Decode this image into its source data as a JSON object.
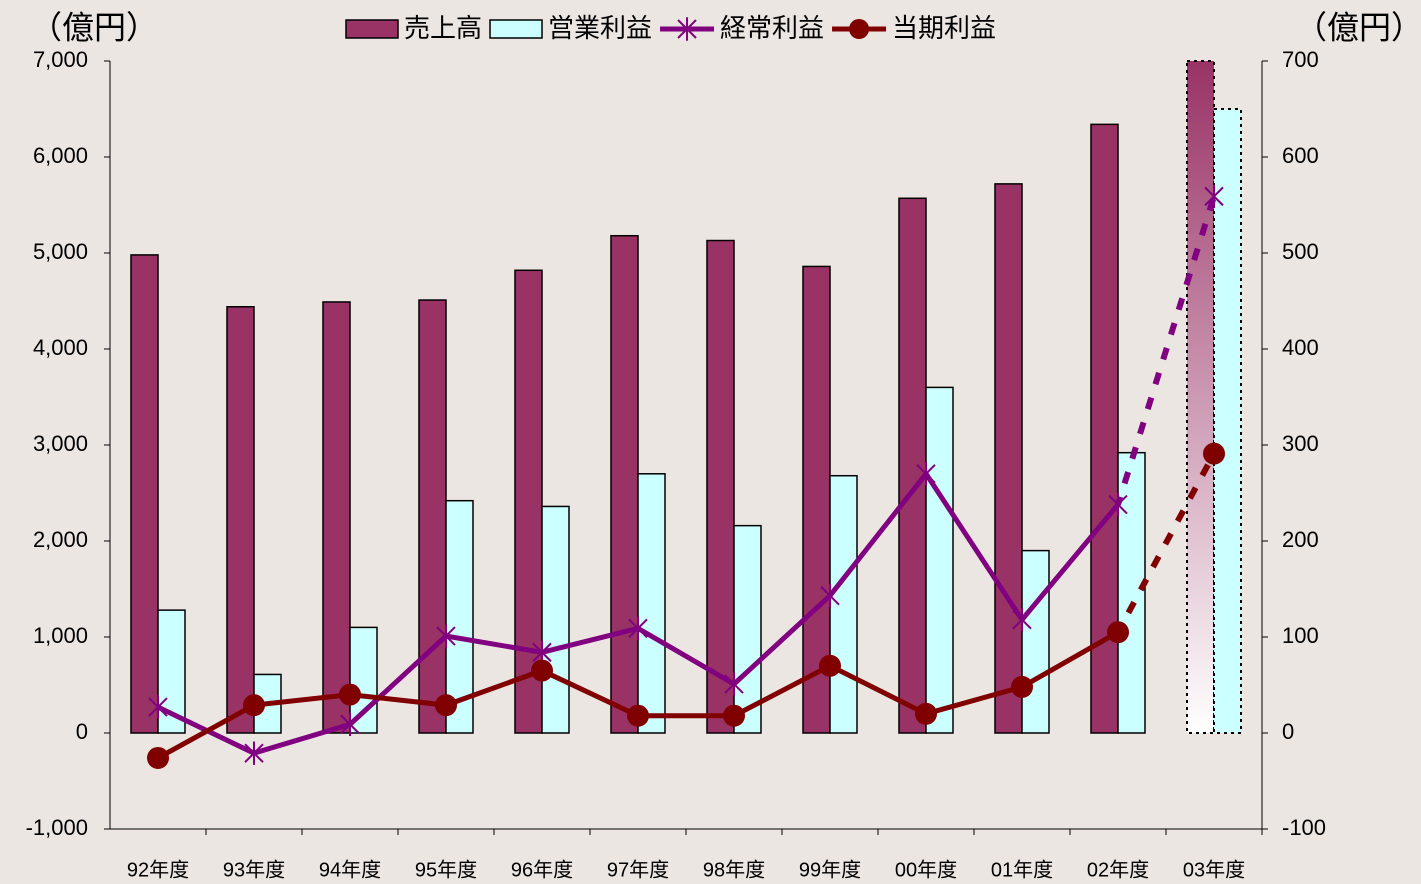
{
  "chart_data": {
    "type": "bar_line",
    "categories": [
      "92年度",
      "93年度",
      "94年度",
      "95年度",
      "96年度",
      "97年度",
      "98年度",
      "99年度",
      "00年度",
      "01年度",
      "02年度",
      "03年度"
    ],
    "y_label": "（億円）",
    "y2_label": "（億円）",
    "ylim": [
      -1000,
      7000
    ],
    "yticks": [
      {
        "value": -1000,
        "label": "-1,000"
      },
      0,
      {
        "value": 1000,
        "label": "1,000"
      },
      {
        "value": 2000,
        "label": "2,000"
      },
      {
        "value": 3000,
        "label": "3,000"
      },
      {
        "value": 4000,
        "label": "4,000"
      },
      {
        "value": 5000,
        "label": "5,000"
      },
      {
        "value": 6000,
        "label": "6,000"
      },
      {
        "value": 7000,
        "label": "7,000"
      }
    ],
    "y2lim": [
      -100,
      700
    ],
    "y2ticks": [
      -100,
      0,
      100,
      200,
      300,
      400,
      500,
      600,
      700
    ],
    "negative_tick_color": "#ff0000",
    "legend": "top",
    "forecast_last": true,
    "series": [
      {
        "name": "売上高",
        "kind": "bar",
        "color": "#993366",
        "values": [
          4980,
          4440,
          4490,
          4510,
          4820,
          5180,
          5130,
          4860,
          5570,
          5720,
          6340,
          7000
        ]
      },
      {
        "name": "営業利益",
        "kind": "bar",
        "axis": "y2",
        "color": "#ccffff",
        "values": [
          128,
          61,
          110,
          242,
          236,
          270,
          216,
          268,
          360,
          190,
          292,
          650
        ]
      },
      {
        "name": "経常利益",
        "kind": "line",
        "axis": "y2",
        "marker": "star",
        "color": "#800080",
        "values": [
          27,
          -21,
          9,
          101,
          84,
          109,
          51,
          143,
          270,
          118,
          238,
          559
        ]
      },
      {
        "name": "当期利益",
        "kind": "line",
        "axis": "y2",
        "marker": "circle",
        "color": "#800000",
        "values": [
          -26,
          29,
          40,
          29,
          65,
          18,
          18,
          70,
          20,
          48,
          105,
          291
        ]
      }
    ]
  }
}
